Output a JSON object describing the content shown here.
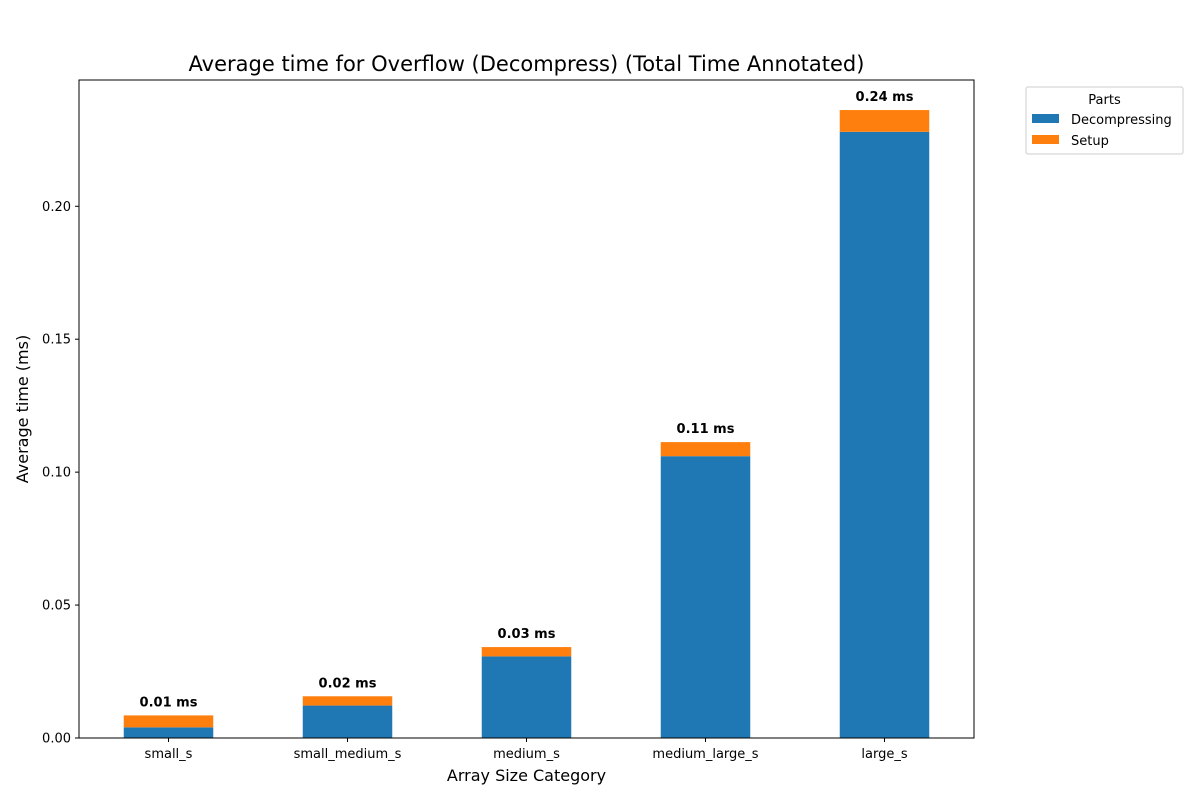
{
  "chart_data": {
    "type": "bar",
    "stacked": true,
    "title": "Average time for Overflow (Decompress) (Total Time Annotated)",
    "xlabel": "Array Size Category",
    "ylabel": "Average time (ms)",
    "categories": [
      "small_s",
      "small_medium_s",
      "medium_s",
      "medium_large_s",
      "large_s"
    ],
    "series": [
      {
        "name": "Decompressing",
        "color": "#1f77b4",
        "values": [
          0.004,
          0.0122,
          0.0307,
          0.106,
          0.228
        ]
      },
      {
        "name": "Setup",
        "color": "#ff7f0e",
        "values": [
          0.0045,
          0.0035,
          0.0035,
          0.0053,
          0.0082
        ]
      }
    ],
    "totals_labels": [
      "0.01 ms",
      "0.02 ms",
      "0.03 ms",
      "0.11 ms",
      "0.24 ms"
    ],
    "ylim": [
      0,
      0.2475
    ],
    "yticks": [
      0.0,
      0.05,
      0.1,
      0.15,
      0.2
    ],
    "ytick_labels": [
      "0.00",
      "0.05",
      "0.10",
      "0.15",
      "0.20"
    ],
    "grid": false,
    "legend": {
      "title": "Parts",
      "placement": "outside-top-right"
    }
  }
}
